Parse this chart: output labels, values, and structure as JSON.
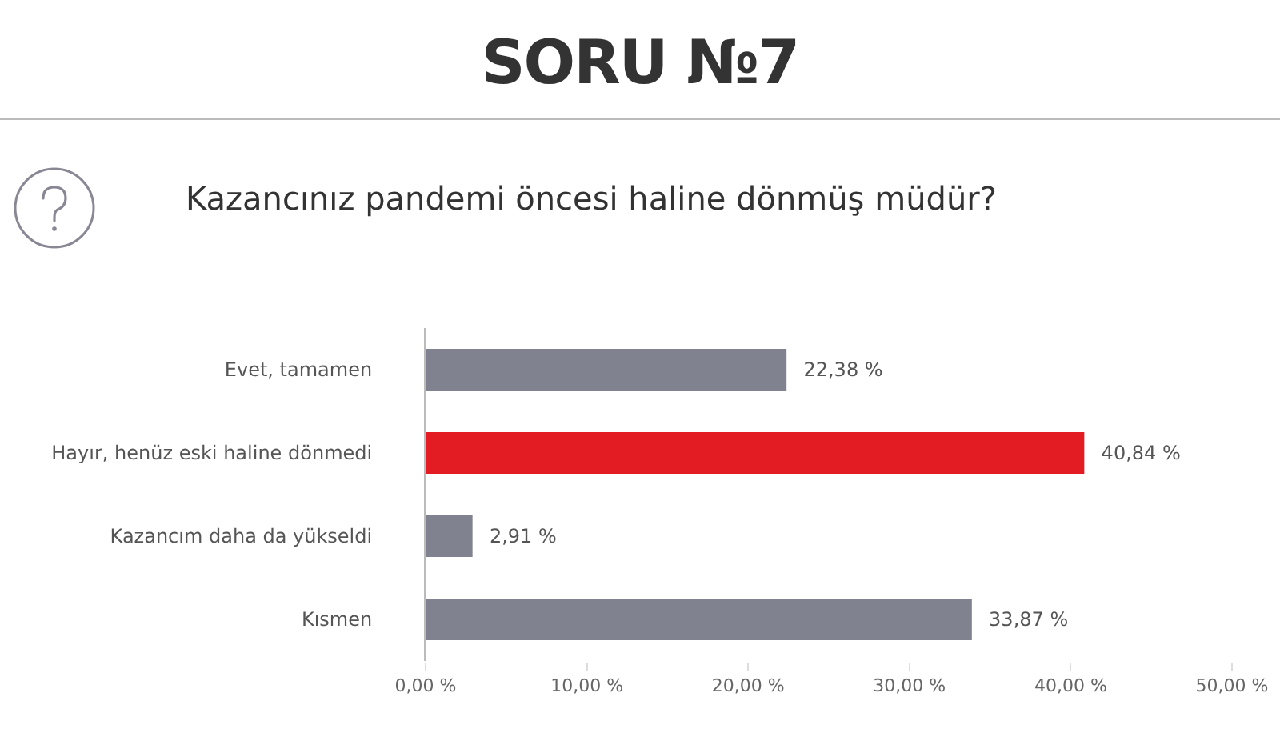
{
  "chart_data": {
    "type": "bar",
    "orientation": "horizontal",
    "title": "SORU №7",
    "subtitle": "Kazancınız pandemi öncesi haline dönmüş müdür?",
    "categories": [
      "Evet, tamamen",
      "Hayır, henüz eski haline dönmedi",
      "Kazancım daha da yükseldi",
      "Kısmen"
    ],
    "values": [
      22.38,
      40.84,
      2.91,
      33.87
    ],
    "colors": [
      "#80838f",
      "#e31b23",
      "#80838f",
      "#80838f"
    ],
    "value_labels": [
      "22,38 %",
      "40,84 %",
      "2,91 %",
      "33,87 %"
    ],
    "xlim": [
      0,
      50
    ],
    "xticks": [
      {
        "value": 0,
        "label": "0,00 %"
      },
      {
        "value": 10,
        "label": "10,00 %"
      },
      {
        "value": 20,
        "label": "20,00 %"
      },
      {
        "value": 30,
        "label": "30,00 %"
      },
      {
        "value": 40,
        "label": "40,00 %"
      },
      {
        "value": 50,
        "label": "50,00 %"
      }
    ],
    "grid": false,
    "legend": false
  }
}
